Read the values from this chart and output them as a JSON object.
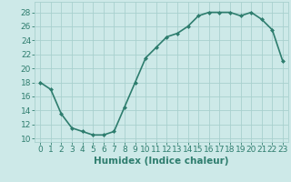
{
  "x": [
    0,
    1,
    2,
    3,
    4,
    5,
    6,
    7,
    8,
    9,
    10,
    11,
    12,
    13,
    14,
    15,
    16,
    17,
    18,
    19,
    20,
    21,
    22,
    23
  ],
  "y": [
    18,
    17,
    13.5,
    11.5,
    11,
    10.5,
    10.5,
    11,
    14.5,
    18,
    21.5,
    23,
    24.5,
    25,
    26,
    27.5,
    28,
    28,
    28,
    27.5,
    28,
    27,
    25.5,
    21
  ],
  "line_color": "#2e7d6e",
  "marker": "D",
  "marker_size": 2.0,
  "line_width": 1.2,
  "background_color": "#cde9e8",
  "grid_color": "#a8d0ce",
  "xlabel": "Humidex (Indice chaleur)",
  "xlabel_fontsize": 7.5,
  "ylabel_ticks": [
    10,
    12,
    14,
    16,
    18,
    20,
    22,
    24,
    26,
    28
  ],
  "ylim": [
    9.5,
    29.5
  ],
  "xlim": [
    -0.5,
    23.5
  ],
  "tick_fontsize": 6.5
}
